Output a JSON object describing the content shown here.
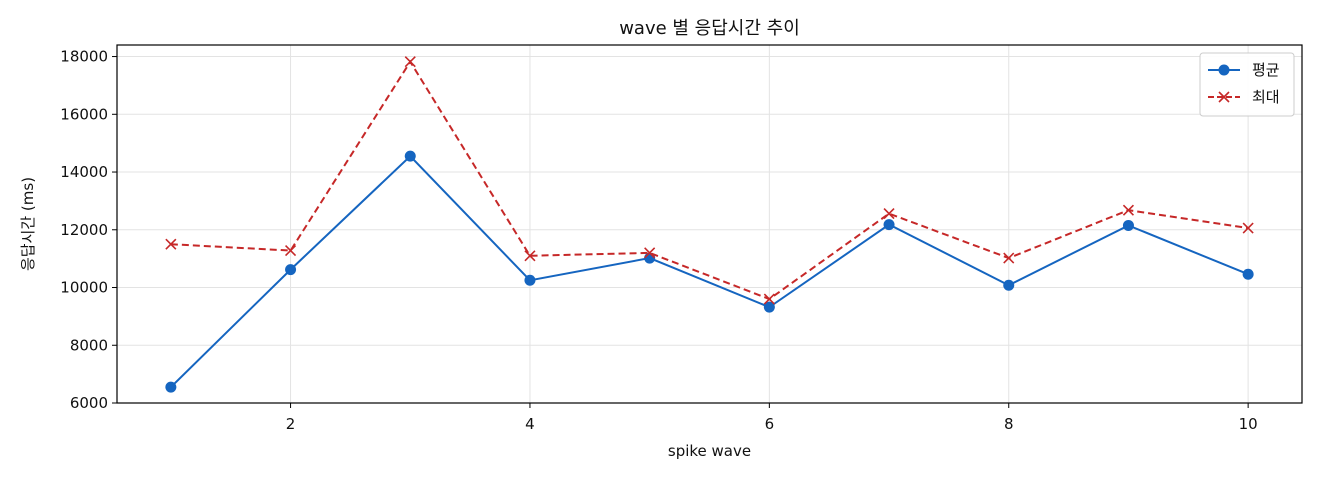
{
  "chart_data": {
    "type": "line",
    "title": "wave 별 응답시간 추이",
    "xlabel": "spike wave",
    "ylabel": "응답시간 (ms)",
    "x": [
      1,
      2,
      3,
      4,
      5,
      6,
      7,
      8,
      9,
      10
    ],
    "xlim": [
      0.55,
      10.45
    ],
    "ylim": [
      6000,
      18400
    ],
    "xticks": [
      2,
      4,
      6,
      8,
      10
    ],
    "yticks": [
      6000,
      8000,
      10000,
      12000,
      14000,
      16000,
      18000
    ],
    "grid": true,
    "legend_position": "top-right",
    "series": [
      {
        "name": "평균",
        "color": "#1565c0",
        "line_style": "solid",
        "marker": "circle",
        "values": [
          6550,
          10620,
          14550,
          10250,
          11020,
          9320,
          12180,
          10080,
          12150,
          10460
        ]
      },
      {
        "name": "최대",
        "color": "#c62828",
        "line_style": "dashed",
        "marker": "x",
        "values": [
          11500,
          11280,
          17820,
          11100,
          11200,
          9600,
          12560,
          11020,
          12680,
          12060
        ]
      }
    ]
  }
}
